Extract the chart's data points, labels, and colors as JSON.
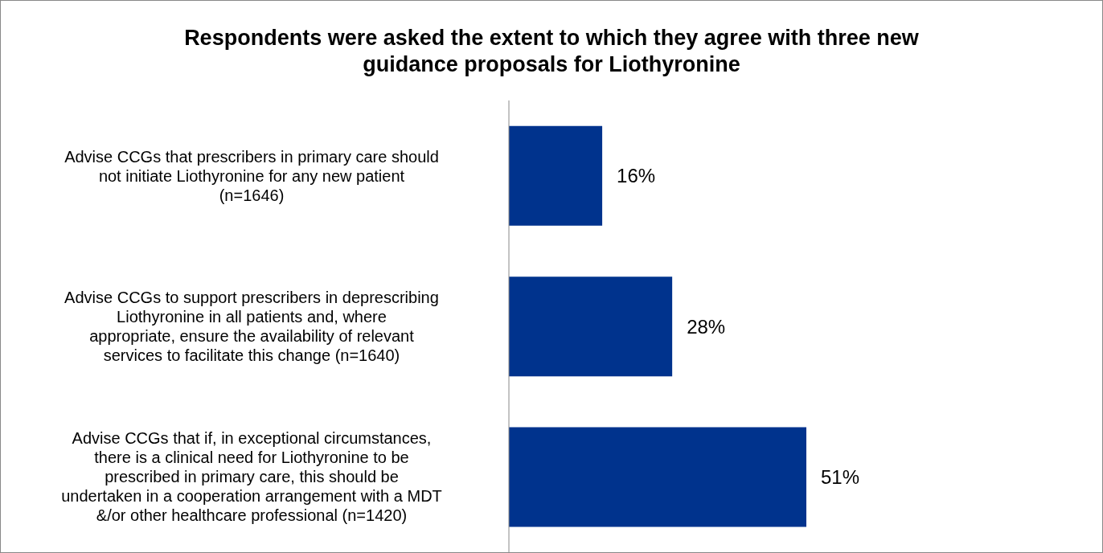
{
  "chart_data": {
    "type": "bar",
    "orientation": "horizontal",
    "title": "Respondents were asked the extent to which they agree with three new guidance proposals for Liothyronine",
    "categories": [
      "Advise CCGs that prescribers in primary care should not initiate Liothyronine for any new patient (n=1646)",
      "Advise CCGs to support prescribers in deprescribing Liothyronine in all patients and, where appropriate, ensure the availability of relevant services to facilitate this change (n=1640)",
      "Advise CCGs that if, in exceptional circumstances, there is a clinical need for Liothyronine to be prescribed in primary care, this should be undertaken in a cooperation arrangement with a MDT &/or other healthcare professional (n=1420)"
    ],
    "values": [
      16,
      28,
      51
    ],
    "color": "#00338d",
    "value_labels": [
      "16%",
      "28%",
      "51%"
    ]
  }
}
